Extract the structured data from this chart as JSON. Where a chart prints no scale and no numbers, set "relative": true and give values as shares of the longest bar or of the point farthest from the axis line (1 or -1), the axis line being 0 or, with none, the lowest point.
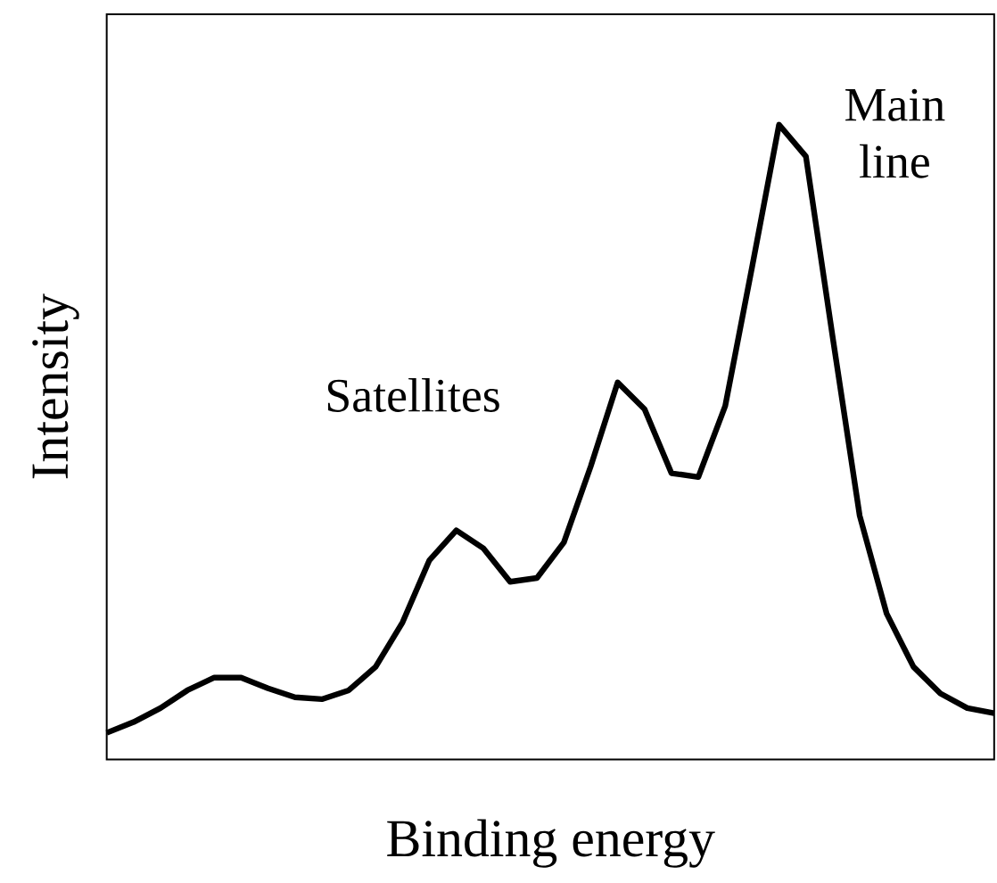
{
  "chart_data": {
    "type": "line",
    "xlabel": "Binding energy",
    "ylabel": "Intensity",
    "relative": true,
    "annotations": [
      "Satellites",
      "Main line"
    ],
    "categories": [
      null,
      null,
      null,
      null,
      null,
      null,
      null,
      null,
      null,
      null,
      null,
      null,
      null,
      null,
      null,
      null,
      null,
      null,
      null,
      null,
      null,
      null,
      null,
      null,
      null,
      null,
      null,
      null,
      null,
      null,
      null,
      null,
      null,
      null
    ],
    "series": [
      {
        "color": "#000000",
        "values": [
          0.042,
          0.059,
          0.081,
          0.109,
          0.129,
          0.129,
          0.112,
          0.098,
          0.095,
          0.109,
          0.146,
          0.216,
          0.314,
          0.361,
          0.333,
          0.28,
          0.286,
          0.342,
          0.462,
          0.594,
          0.552,
          0.451,
          0.445,
          0.557,
          0.776,
          1.0,
          0.95,
          0.664,
          0.384,
          0.23,
          0.146,
          0.104,
          0.081,
          0.073
        ]
      }
    ],
    "marker": "none",
    "line_style": "solid"
  }
}
